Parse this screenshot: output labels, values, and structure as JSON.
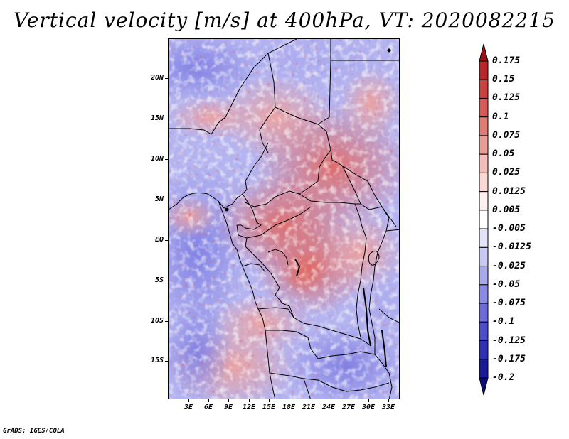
{
  "title": "Vertical velocity [m/s] at 400hPa, VT: 2020082215",
  "footer": "GrADS: IGES/COLA",
  "map": {
    "lat_labels": [
      "20N",
      "15N",
      "10N",
      "5N",
      "EQ",
      "5S",
      "10S",
      "15S"
    ],
    "lon_labels": [
      "3E",
      "6E",
      "9E",
      "12E",
      "15E",
      "18E",
      "21E",
      "24E",
      "27E",
      "30E",
      "33E"
    ]
  },
  "colorbar": {
    "labels": [
      "0.175",
      "0.15",
      "0.125",
      "0.1",
      "0.075",
      "0.05",
      "0.025",
      "0.0125",
      "0.005",
      "-0.005",
      "-0.0125",
      "-0.025",
      "-0.05",
      "-0.075",
      "-0.1",
      "-0.125",
      "-0.175",
      "-0.2"
    ],
    "colors": [
      "#9c1214",
      "#b8262a",
      "#c9403f",
      "#d65b57",
      "#e07b74",
      "#eb9c95",
      "#f4bdb7",
      "#fad9d5",
      "#fdf0ee",
      "#ffffff",
      "#e3e3fa",
      "#c8c8f5",
      "#a9a9ee",
      "#8a8ae6",
      "#6a6ad9",
      "#4d4dca",
      "#3030b5",
      "#1a1a99",
      "#0d0d7a"
    ]
  },
  "chart_data": {
    "type": "heatmap",
    "title": "Vertical velocity [m/s] at 400hPa, VT: 2020082215",
    "variable": "Vertical velocity",
    "units": "m/s",
    "level": "400hPa",
    "valid_time": "2020082215",
    "lat_range": [
      "19S",
      "24N"
    ],
    "lon_range": [
      "0E",
      "35E"
    ],
    "contour_levels": [
      -0.2,
      -0.175,
      -0.125,
      -0.1,
      -0.075,
      -0.05,
      -0.025,
      -0.0125,
      -0.005,
      0.005,
      0.0125,
      0.025,
      0.05,
      0.075,
      0.1,
      0.125,
      0.15,
      0.175
    ]
  }
}
